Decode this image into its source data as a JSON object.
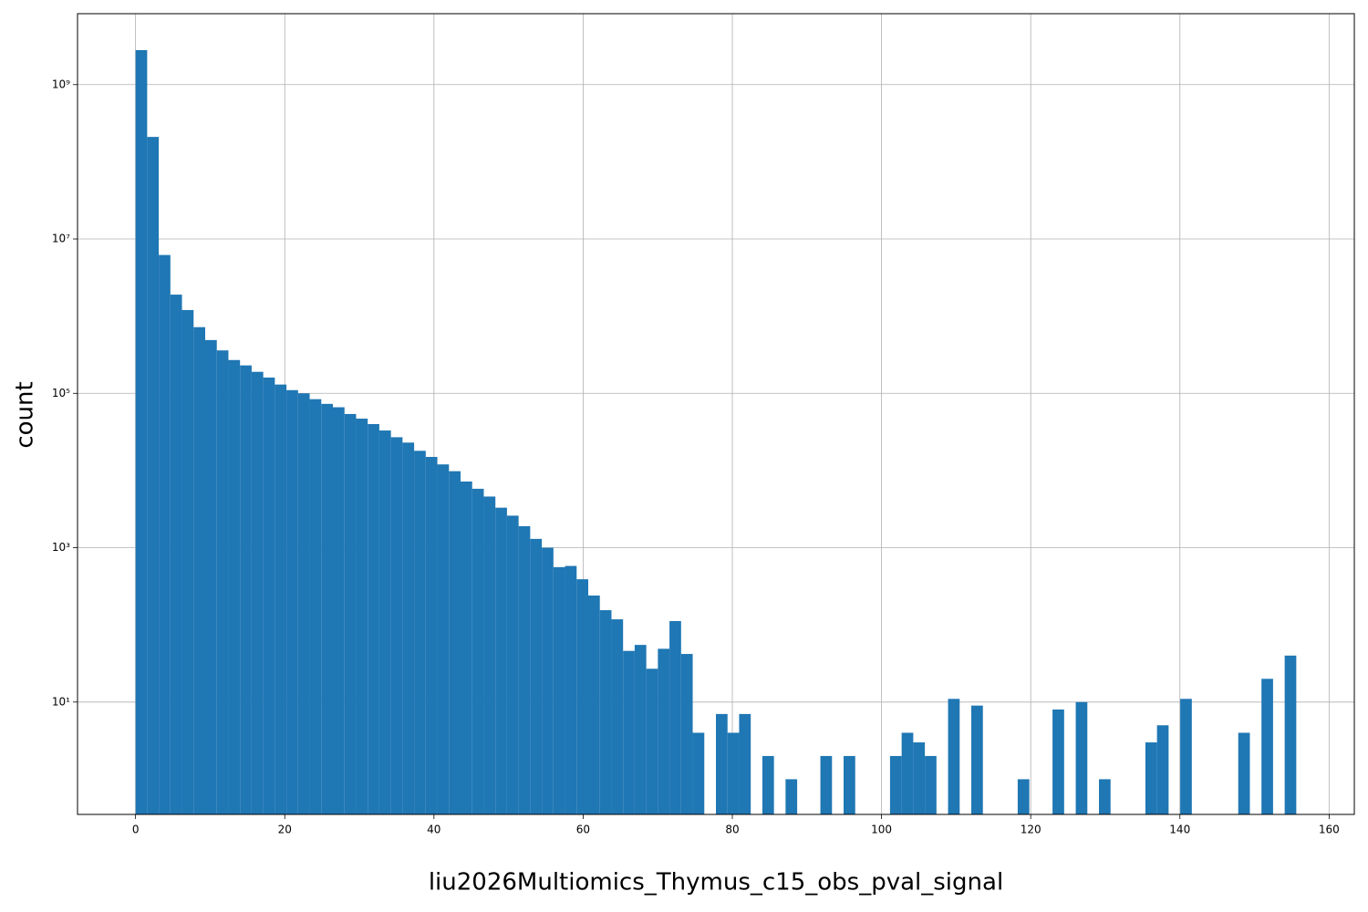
{
  "chart_data": {
    "type": "histogram",
    "xlabel": "liu2026Multiomics_Thymus_c15_obs_pval_signal",
    "ylabel": "count",
    "color": "#1f77b4",
    "log_y": true,
    "grid": true,
    "bins": [
      0,
      1.556,
      3.112,
      4.668,
      6.224,
      7.78,
      9.336,
      10.892,
      12.448,
      14.004,
      15.56,
      17.116,
      18.672,
      20.228,
      21.784,
      23.34,
      24.896,
      26.452,
      28.008,
      29.564,
      31.12,
      32.676,
      34.232,
      35.788,
      37.344,
      38.9,
      40.456,
      42.012,
      43.568,
      45.124,
      46.68,
      48.236,
      49.792,
      51.348,
      52.904,
      54.46,
      56.016,
      57.572,
      59.128,
      60.684,
      62.24,
      63.796,
      65.352,
      66.908,
      68.464,
      70.02,
      71.576,
      73.132,
      74.688,
      76.244,
      77.8,
      79.356,
      80.912,
      82.468,
      84.024,
      85.58,
      87.136,
      88.692,
      90.248,
      91.804,
      93.36,
      94.916,
      96.472,
      98.028,
      99.584,
      101.14,
      102.696,
      104.252,
      105.808,
      107.364,
      108.92,
      110.476,
      112.032,
      113.588,
      115.144,
      116.7,
      118.256,
      119.812,
      121.368,
      122.924,
      124.48,
      126.036,
      127.592,
      129.148,
      130.704,
      132.26,
      133.816,
      135.372,
      136.928,
      138.484,
      140.04,
      141.596,
      143.152,
      144.708,
      146.264,
      147.82,
      149.376,
      150.932,
      152.488,
      154.044,
      155.6
    ],
    "counts": [
      2800000000,
      210000000,
      6200000,
      1900000,
      1200000,
      720000,
      490000,
      360000,
      270000,
      230000,
      190000,
      160000,
      130000,
      110000,
      100000,
      84000,
      73000,
      66000,
      54000,
      47000,
      40000,
      33000,
      27000,
      23000,
      18000,
      15000,
      12000,
      9800,
      7200,
      5800,
      4600,
      3300,
      2600,
      1900,
      1300,
      1000,
      560,
      580,
      390,
      240,
      155,
      118,
      46,
      55,
      27,
      49,
      112,
      42,
      4,
      0,
      7,
      4,
      7,
      0,
      2,
      0,
      1,
      0,
      0,
      2,
      0,
      2,
      0,
      0,
      0,
      2,
      4,
      3,
      2,
      0,
      11,
      0,
      9,
      0,
      0,
      0,
      1,
      0,
      0,
      8,
      0,
      10,
      0,
      1,
      0,
      0,
      0,
      3,
      5,
      0,
      11,
      0,
      0,
      0,
      0,
      4,
      0,
      20,
      0,
      40
    ],
    "xlim": [
      -7.78,
      163.38
    ],
    "xticks": [
      0,
      20,
      40,
      60,
      80,
      100,
      120,
      140,
      160
    ],
    "ylim": [
      0.35,
      8300000000
    ],
    "yticks": [
      {
        "value": 10,
        "label": "10¹"
      },
      {
        "value": 1000,
        "label": "10³"
      },
      {
        "value": 100000,
        "label": "10⁵"
      },
      {
        "value": 10000000,
        "label": "10⁷"
      },
      {
        "value": 1000000000,
        "label": "10⁹"
      }
    ]
  }
}
